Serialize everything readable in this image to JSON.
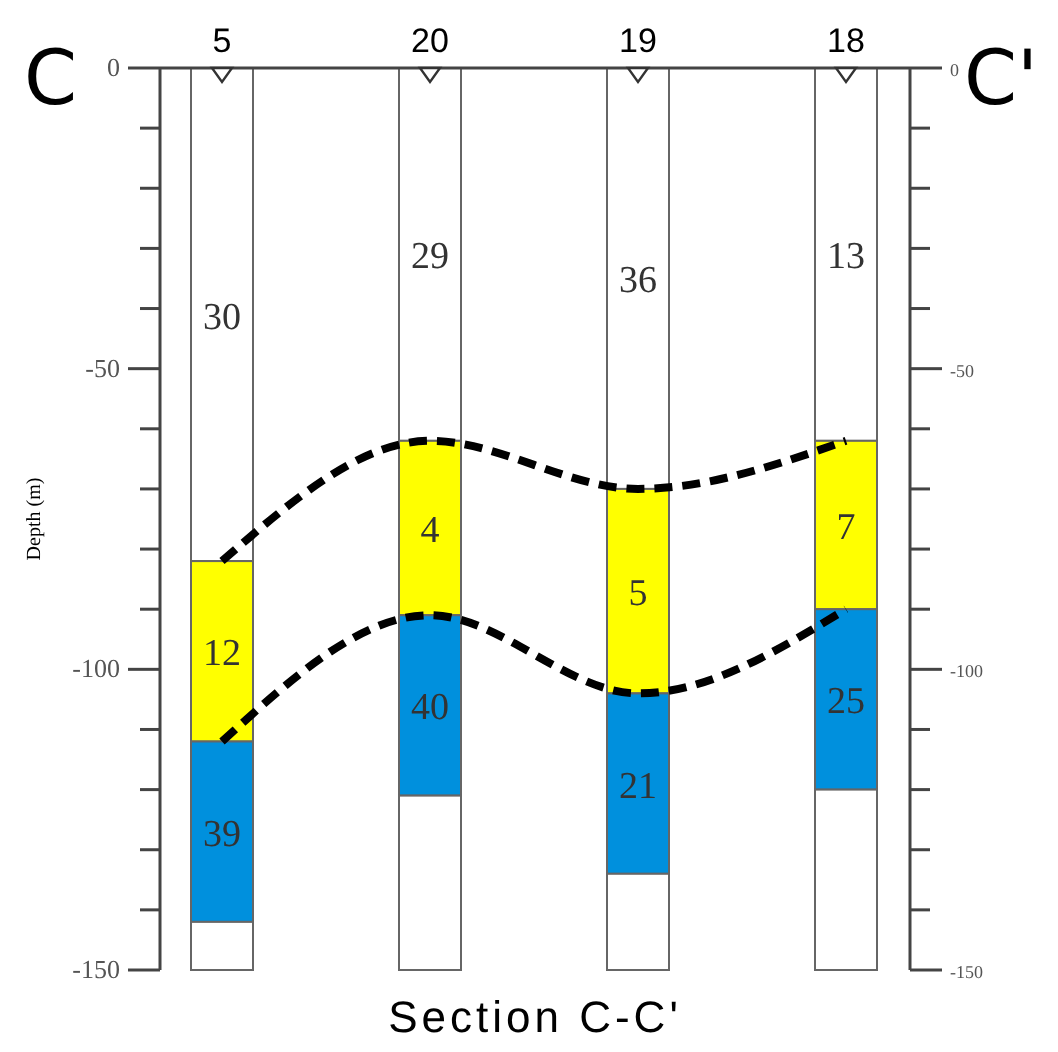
{
  "chart_data": {
    "type": "bar",
    "stacked": true,
    "xlabel": "Section C-C'",
    "ylabel": "Depth (m)",
    "annotations": [
      "C",
      "C'",
      "30",
      "29",
      "36",
      "13",
      "12",
      "4",
      "5",
      "7",
      "39",
      "40",
      "21",
      "25"
    ],
    "categories": [
      "5",
      "20",
      "19",
      "18"
    ],
    "series": [
      {
        "color": "#ffffff",
        "values": [
          -82,
          -62,
          -70,
          -62
        ]
      },
      {
        "color": "#ffff00",
        "values": [
          -30,
          -29,
          -34,
          -28
        ]
      },
      {
        "color": "#0090dd",
        "values": [
          -30,
          -30,
          -30,
          -30
        ]
      },
      {
        "color": "#ffffff",
        "values": [
          -8,
          -29,
          -16,
          -30
        ]
      },
      {
        "type": "line",
        "color": "#000000",
        "x": [
          "5",
          "20",
          "19",
          "18"
        ],
        "values": [
          -82,
          -62,
          -70,
          -62
        ],
        "line_style": "dashed",
        "marker": "none"
      },
      {
        "type": "line",
        "color": "#000000",
        "x": [
          "5",
          "20",
          "19",
          "18"
        ],
        "values": [
          -112,
          -91,
          -104,
          -90
        ],
        "line_style": "dashed",
        "marker": "none"
      }
    ],
    "ylim": [
      -150,
      0
    ],
    "yticks": [
      0,
      {
        "value": -10,
        "label": null
      },
      {
        "value": -20,
        "label": null
      },
      {
        "value": -30,
        "label": null
      },
      {
        "value": -40,
        "label": null
      },
      -50,
      {
        "value": -60,
        "label": null
      },
      {
        "value": -70,
        "label": null
      },
      {
        "value": -80,
        "label": null
      },
      {
        "value": -90,
        "label": null
      },
      -100,
      {
        "value": -110,
        "label": null
      },
      {
        "value": -120,
        "label": null
      },
      {
        "value": -130,
        "label": null
      },
      {
        "value": -140,
        "label": null
      },
      -150
    ],
    "y2lim": [
      -150,
      0
    ],
    "y2ticks": [
      0,
      {
        "value": -10,
        "label": null
      },
      {
        "value": -20,
        "label": null
      },
      {
        "value": -30,
        "label": null
      },
      {
        "value": -40,
        "label": null
      },
      -50,
      {
        "value": -60,
        "label": null
      },
      {
        "value": -70,
        "label": null
      },
      {
        "value": -80,
        "label": null
      },
      {
        "value": -90,
        "label": null
      },
      -100,
      {
        "value": -110,
        "label": null
      },
      {
        "value": -120,
        "label": null
      },
      {
        "value": -130,
        "label": null
      },
      {
        "value": -140,
        "label": null
      },
      -150
    ]
  }
}
